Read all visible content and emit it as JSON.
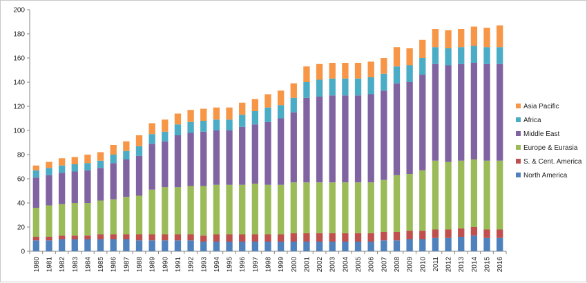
{
  "chart_data": {
    "type": "bar",
    "stacked": true,
    "title": "",
    "xlabel": "",
    "ylabel": "",
    "ylim": [
      0,
      200
    ],
    "yticks": [
      0,
      20,
      40,
      60,
      80,
      100,
      120,
      140,
      160,
      180,
      200
    ],
    "grid": false,
    "legend_position": "right",
    "categories": [
      "1980",
      "1981",
      "1982",
      "1983",
      "1984",
      "1985",
      "1986",
      "1987",
      "1988",
      "1989",
      "1990",
      "1991",
      "1992",
      "1993",
      "1994",
      "1995",
      "1996",
      "1997",
      "1998",
      "1999",
      "2000",
      "2001",
      "2002",
      "2003",
      "2004",
      "2005",
      "2006",
      "2007",
      "2008",
      "2009",
      "2010",
      "2011",
      "2012",
      "2013",
      "2014",
      "2015",
      "2016"
    ],
    "series": [
      {
        "name": "North America",
        "color": "#4f81bd",
        "values": [
          9,
          9,
          10,
          10,
          10,
          10,
          10,
          10,
          9,
          9,
          9,
          9,
          9,
          8,
          8,
          8,
          8,
          8,
          8,
          8,
          8,
          8,
          8,
          8,
          8,
          8,
          8,
          9,
          9,
          10,
          10,
          11,
          11,
          12,
          13,
          11,
          11
        ]
      },
      {
        "name": "S. & Cent. America",
        "color": "#c0504d",
        "values": [
          3,
          3,
          3,
          3,
          3,
          4,
          4,
          4,
          5,
          5,
          5,
          5,
          5,
          5,
          6,
          6,
          6,
          6,
          6,
          6,
          7,
          7,
          7,
          7,
          7,
          7,
          7,
          7,
          7,
          7,
          7,
          7,
          7,
          7,
          7,
          7,
          7
        ]
      },
      {
        "name": "Europe & Eurasia",
        "color": "#9bbb59",
        "values": [
          24,
          26,
          26,
          27,
          27,
          28,
          29,
          31,
          32,
          37,
          39,
          39,
          40,
          41,
          41,
          41,
          41,
          42,
          41,
          41,
          42,
          42,
          42,
          42,
          42,
          42,
          42,
          43,
          47,
          47,
          50,
          57,
          56,
          56,
          56,
          57,
          57
        ]
      },
      {
        "name": "Middle East",
        "color": "#8064a2",
        "values": [
          25,
          25,
          26,
          26,
          27,
          27,
          30,
          31,
          33,
          38,
          38,
          43,
          44,
          45,
          45,
          45,
          48,
          49,
          52,
          55,
          58,
          70,
          71,
          72,
          72,
          72,
          73,
          74,
          76,
          76,
          79,
          80,
          80,
          80,
          80,
          80,
          80
        ]
      },
      {
        "name": "Africa",
        "color": "#4bacc6",
        "values": [
          6,
          6,
          6,
          6,
          6,
          6,
          7,
          7,
          8,
          8,
          8,
          9,
          9,
          9,
          9,
          9,
          10,
          11,
          12,
          11,
          12,
          13,
          14,
          14,
          14,
          14,
          14,
          14,
          14,
          14,
          14,
          14,
          14,
          14,
          14,
          14,
          14
        ]
      },
      {
        "name": "Asia Pacific",
        "color": "#f79646",
        "values": [
          4,
          5,
          6,
          6,
          7,
          7,
          8,
          8,
          9,
          9,
          10,
          9,
          10,
          10,
          10,
          10,
          10,
          10,
          11,
          12,
          12,
          13,
          13,
          13,
          13,
          13,
          13,
          13,
          16,
          14,
          15,
          15,
          15,
          15,
          16,
          16,
          18
        ]
      }
    ]
  }
}
